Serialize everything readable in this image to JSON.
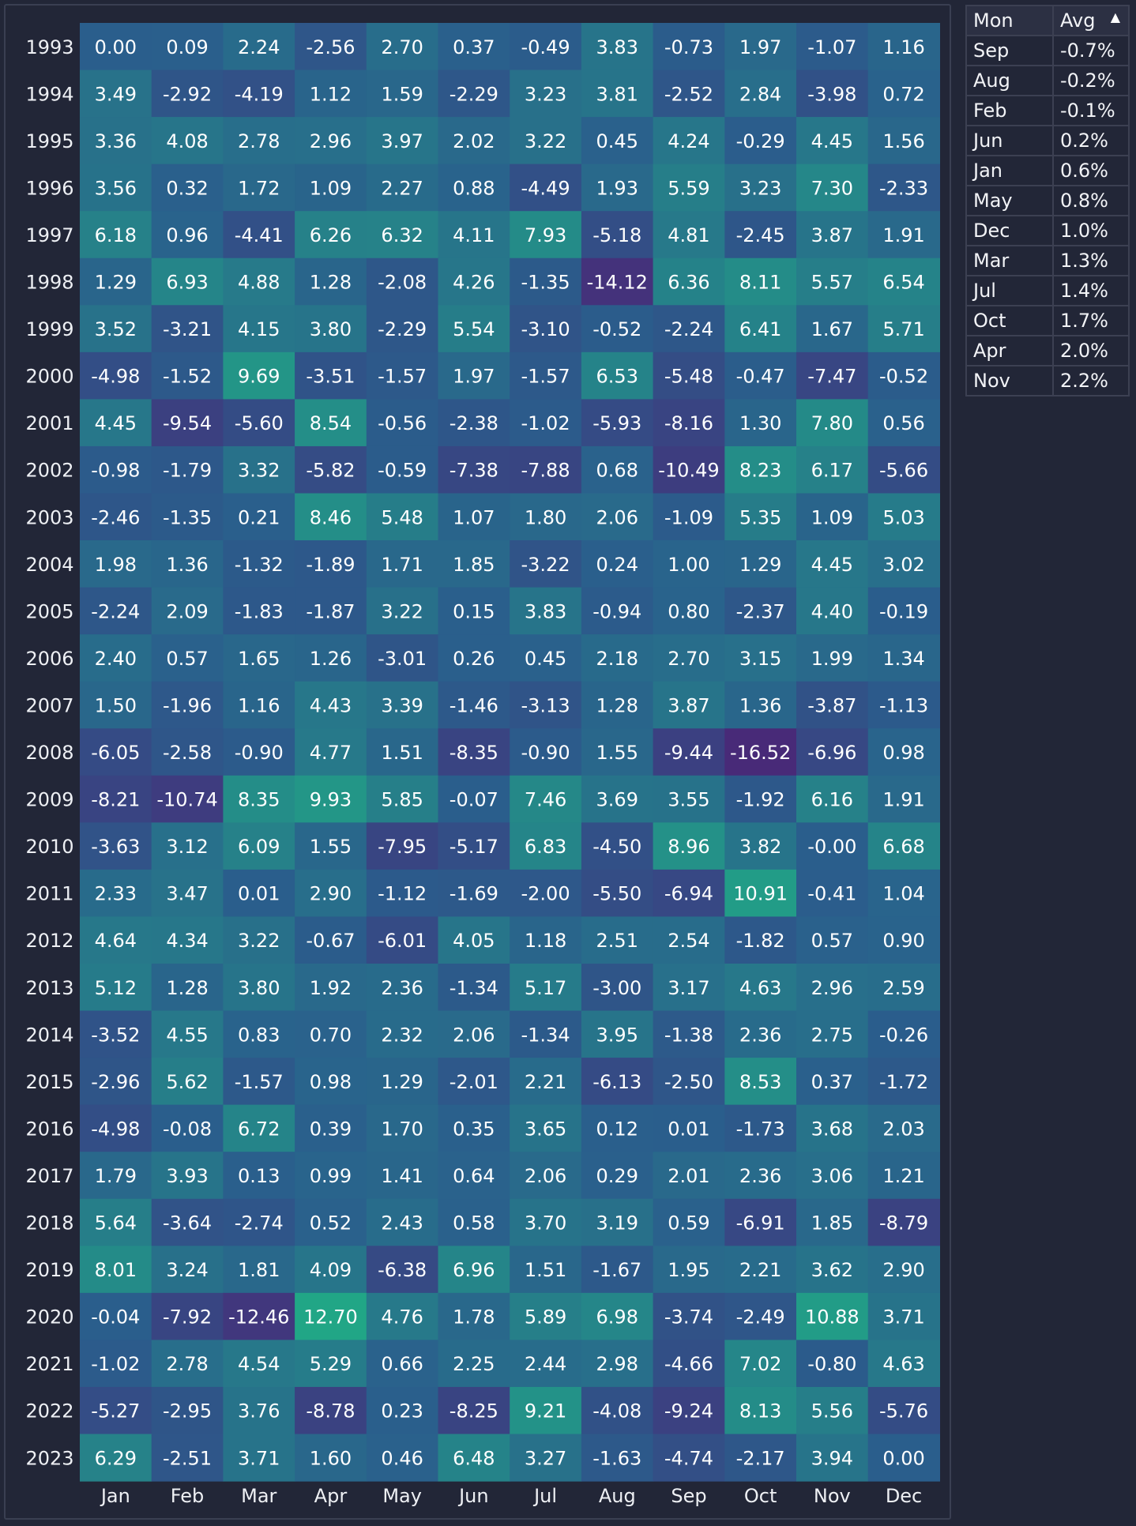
{
  "chart_data": {
    "type": "heatmap",
    "x": [
      "Jan",
      "Feb",
      "Mar",
      "Apr",
      "May",
      "Jun",
      "Jul",
      "Aug",
      "Sep",
      "Oct",
      "Nov",
      "Dec"
    ],
    "y": [
      "1993",
      "1994",
      "1995",
      "1996",
      "1997",
      "1998",
      "1999",
      "2000",
      "2001",
      "2002",
      "2003",
      "2004",
      "2005",
      "2006",
      "2007",
      "2008",
      "2009",
      "2010",
      "2011",
      "2012",
      "2013",
      "2014",
      "2015",
      "2016",
      "2017",
      "2018",
      "2019",
      "2020",
      "2021",
      "2022",
      "2023"
    ],
    "values": [
      [
        "0.00",
        "0.09",
        "2.24",
        "-2.56",
        "2.70",
        "0.37",
        "-0.49",
        "3.83",
        "-0.73",
        "1.97",
        "-1.07",
        "1.16"
      ],
      [
        "3.49",
        "-2.92",
        "-4.19",
        "1.12",
        "1.59",
        "-2.29",
        "3.23",
        "3.81",
        "-2.52",
        "2.84",
        "-3.98",
        "0.72"
      ],
      [
        "3.36",
        "4.08",
        "2.78",
        "2.96",
        "3.97",
        "2.02",
        "3.22",
        "0.45",
        "4.24",
        "-0.29",
        "4.45",
        "1.56"
      ],
      [
        "3.56",
        "0.32",
        "1.72",
        "1.09",
        "2.27",
        "0.88",
        "-4.49",
        "1.93",
        "5.59",
        "3.23",
        "7.30",
        "-2.33"
      ],
      [
        "6.18",
        "0.96",
        "-4.41",
        "6.26",
        "6.32",
        "4.11",
        "7.93",
        "-5.18",
        "4.81",
        "-2.45",
        "3.87",
        "1.91"
      ],
      [
        "1.29",
        "6.93",
        "4.88",
        "1.28",
        "-2.08",
        "4.26",
        "-1.35",
        "-14.12",
        "6.36",
        "8.11",
        "5.57",
        "6.54"
      ],
      [
        "3.52",
        "-3.21",
        "4.15",
        "3.80",
        "-2.29",
        "5.54",
        "-3.10",
        "-0.52",
        "-2.24",
        "6.41",
        "1.67",
        "5.71"
      ],
      [
        "-4.98",
        "-1.52",
        "9.69",
        "-3.51",
        "-1.57",
        "1.97",
        "-1.57",
        "6.53",
        "-5.48",
        "-0.47",
        "-7.47",
        "-0.52"
      ],
      [
        "4.45",
        "-9.54",
        "-5.60",
        "8.54",
        "-0.56",
        "-2.38",
        "-1.02",
        "-5.93",
        "-8.16",
        "1.30",
        "7.80",
        "0.56"
      ],
      [
        "-0.98",
        "-1.79",
        "3.32",
        "-5.82",
        "-0.59",
        "-7.38",
        "-7.88",
        "0.68",
        "-10.49",
        "8.23",
        "6.17",
        "-5.66"
      ],
      [
        "-2.46",
        "-1.35",
        "0.21",
        "8.46",
        "5.48",
        "1.07",
        "1.80",
        "2.06",
        "-1.09",
        "5.35",
        "1.09",
        "5.03"
      ],
      [
        "1.98",
        "1.36",
        "-1.32",
        "-1.89",
        "1.71",
        "1.85",
        "-3.22",
        "0.24",
        "1.00",
        "1.29",
        "4.45",
        "3.02"
      ],
      [
        "-2.24",
        "2.09",
        "-1.83",
        "-1.87",
        "3.22",
        "0.15",
        "3.83",
        "-0.94",
        "0.80",
        "-2.37",
        "4.40",
        "-0.19"
      ],
      [
        "2.40",
        "0.57",
        "1.65",
        "1.26",
        "-3.01",
        "0.26",
        "0.45",
        "2.18",
        "2.70",
        "3.15",
        "1.99",
        "1.34"
      ],
      [
        "1.50",
        "-1.96",
        "1.16",
        "4.43",
        "3.39",
        "-1.46",
        "-3.13",
        "1.28",
        "3.87",
        "1.36",
        "-3.87",
        "-1.13"
      ],
      [
        "-6.05",
        "-2.58",
        "-0.90",
        "4.77",
        "1.51",
        "-8.35",
        "-0.90",
        "1.55",
        "-9.44",
        "-16.52",
        "-6.96",
        "0.98"
      ],
      [
        "-8.21",
        "-10.74",
        "8.35",
        "9.93",
        "5.85",
        "-0.07",
        "7.46",
        "3.69",
        "3.55",
        "-1.92",
        "6.16",
        "1.91"
      ],
      [
        "-3.63",
        "3.12",
        "6.09",
        "1.55",
        "-7.95",
        "-5.17",
        "6.83",
        "-4.50",
        "8.96",
        "3.82",
        "-0.00",
        "6.68"
      ],
      [
        "2.33",
        "3.47",
        "0.01",
        "2.90",
        "-1.12",
        "-1.69",
        "-2.00",
        "-5.50",
        "-6.94",
        "10.91",
        "-0.41",
        "1.04"
      ],
      [
        "4.64",
        "4.34",
        "3.22",
        "-0.67",
        "-6.01",
        "4.05",
        "1.18",
        "2.51",
        "2.54",
        "-1.82",
        "0.57",
        "0.90"
      ],
      [
        "5.12",
        "1.28",
        "3.80",
        "1.92",
        "2.36",
        "-1.34",
        "5.17",
        "-3.00",
        "3.17",
        "4.63",
        "2.96",
        "2.59"
      ],
      [
        "-3.52",
        "4.55",
        "0.83",
        "0.70",
        "2.32",
        "2.06",
        "-1.34",
        "3.95",
        "-1.38",
        "2.36",
        "2.75",
        "-0.26"
      ],
      [
        "-2.96",
        "5.62",
        "-1.57",
        "0.98",
        "1.29",
        "-2.01",
        "2.21",
        "-6.13",
        "-2.50",
        "8.53",
        "0.37",
        "-1.72"
      ],
      [
        "-4.98",
        "-0.08",
        "6.72",
        "0.39",
        "1.70",
        "0.35",
        "3.65",
        "0.12",
        "0.01",
        "-1.73",
        "3.68",
        "2.03"
      ],
      [
        "1.79",
        "3.93",
        "0.13",
        "0.99",
        "1.41",
        "0.64",
        "2.06",
        "0.29",
        "2.01",
        "2.36",
        "3.06",
        "1.21"
      ],
      [
        "5.64",
        "-3.64",
        "-2.74",
        "0.52",
        "2.43",
        "0.58",
        "3.70",
        "3.19",
        "0.59",
        "-6.91",
        "1.85",
        "-8.79"
      ],
      [
        "8.01",
        "3.24",
        "1.81",
        "4.09",
        "-6.38",
        "6.96",
        "1.51",
        "-1.67",
        "1.95",
        "2.21",
        "3.62",
        "2.90"
      ],
      [
        "-0.04",
        "-7.92",
        "-12.46",
        "12.70",
        "4.76",
        "1.78",
        "5.89",
        "6.98",
        "-3.74",
        "-2.49",
        "10.88",
        "3.71"
      ],
      [
        "-1.02",
        "2.78",
        "4.54",
        "5.29",
        "0.66",
        "2.25",
        "2.44",
        "2.98",
        "-4.66",
        "7.02",
        "-0.80",
        "4.63"
      ],
      [
        "-5.27",
        "-2.95",
        "3.76",
        "-8.78",
        "0.23",
        "-8.25",
        "9.21",
        "-4.08",
        "-9.24",
        "8.13",
        "5.56",
        "-5.76"
      ],
      [
        "6.29",
        "-2.51",
        "3.71",
        "1.60",
        "0.46",
        "6.48",
        "3.27",
        "-1.63",
        "-4.74",
        "-2.17",
        "3.94",
        "0.00"
      ]
    ],
    "color_scale": {
      "low": "#482a78",
      "mid": "#2a5e8c",
      "high": "#21a686"
    },
    "grid": false,
    "legend": "none"
  },
  "summary_table": {
    "headers": [
      "Mon",
      "Avg"
    ],
    "sort_indicator": "▲",
    "rows": [
      [
        "Sep",
        "-0.7%"
      ],
      [
        "Aug",
        "-0.2%"
      ],
      [
        "Feb",
        "-0.1%"
      ],
      [
        "Jun",
        "0.2%"
      ],
      [
        "Jan",
        "0.6%"
      ],
      [
        "May",
        "0.8%"
      ],
      [
        "Dec",
        "1.0%"
      ],
      [
        "Mar",
        "1.3%"
      ],
      [
        "Jul",
        "1.4%"
      ],
      [
        "Oct",
        "1.7%"
      ],
      [
        "Apr",
        "2.0%"
      ],
      [
        "Nov",
        "2.2%"
      ]
    ]
  }
}
